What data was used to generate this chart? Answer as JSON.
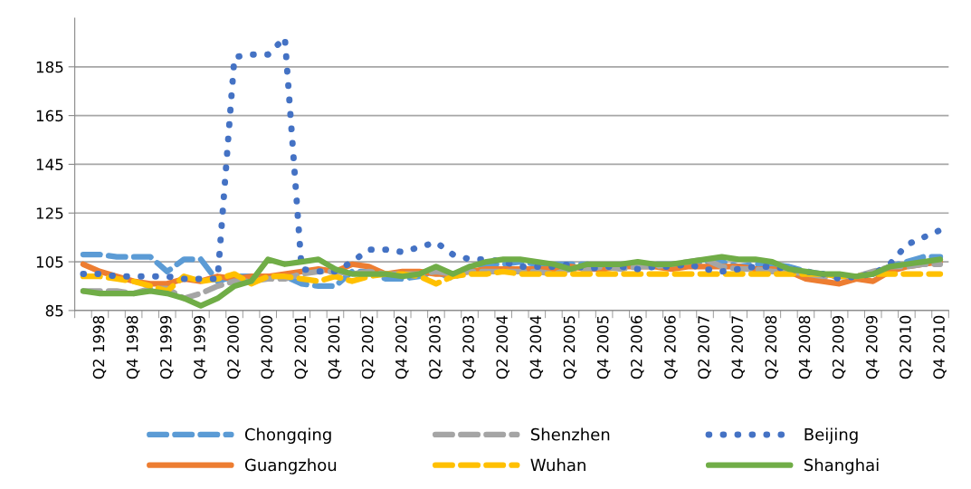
{
  "chart_data": {
    "type": "line",
    "categories": [
      null,
      "Q2 1998",
      null,
      "Q4 1998",
      null,
      "Q2 1999",
      null,
      "Q4 1999",
      null,
      "Q2 2000",
      null,
      "Q4 2000",
      null,
      "Q2 2001",
      null,
      "Q4 2001",
      null,
      "Q2 2002",
      null,
      "Q4 2002",
      null,
      "Q2 2003",
      null,
      "Q4 2003",
      null,
      "Q2 2004",
      null,
      "Q4 2004",
      null,
      "Q2 2005",
      null,
      "Q4 2005",
      null,
      "Q2 2006",
      null,
      "Q4 2006",
      null,
      "Q2 2007",
      null,
      "Q4 2007",
      null,
      "Q2 2008",
      null,
      "Q4 2008",
      null,
      "Q2 2009",
      null,
      "Q4 2009",
      null,
      "Q2 2010",
      null,
      "Q4 2010"
    ],
    "series": [
      {
        "name": "Chongqing",
        "color": "#5b9bd5",
        "line_style": "dashed",
        "values": [
          108,
          108,
          107,
          107,
          107,
          101,
          106,
          106,
          97,
          99,
          99,
          99,
          99,
          96,
          95,
          95,
          101,
          101,
          98,
          98,
          99,
          101,
          98,
          103,
          104,
          104,
          105,
          104,
          104,
          104,
          104,
          103,
          103,
          104,
          104,
          104,
          104,
          105,
          105,
          103,
          104,
          104,
          103,
          101,
          100,
          99,
          99,
          100,
          103,
          105,
          107,
          107
        ]
      },
      {
        "name": "Guangzhou",
        "color": "#ed7d31",
        "line_style": "solid",
        "values": [
          104,
          101,
          99,
          97,
          96,
          96,
          98,
          97,
          99,
          98,
          99,
          99,
          100,
          101,
          102,
          101,
          104,
          103,
          100,
          101,
          101,
          100,
          100,
          101,
          102,
          102,
          102,
          102,
          102,
          103,
          102,
          102,
          103,
          103,
          103,
          102,
          103,
          103,
          103,
          103,
          102,
          102,
          101,
          98,
          97,
          96,
          98,
          97,
          101,
          103,
          104,
          105
        ]
      },
      {
        "name": "Shenzhen",
        "color": "#a5a5a5",
        "line_style": "dashed",
        "values": [
          93,
          93,
          93,
          92,
          94,
          94,
          90,
          92,
          95,
          97,
          97,
          98,
          98,
          100,
          101,
          101,
          100,
          101,
          100,
          100,
          100,
          101,
          100,
          101,
          101,
          101,
          101,
          101,
          100,
          102,
          102,
          103,
          102,
          103,
          103,
          104,
          105,
          106,
          103,
          102,
          102,
          101,
          101,
          100,
          99,
          99,
          99,
          101,
          103,
          103,
          104,
          104
        ]
      },
      {
        "name": "Wuhan",
        "color": "#ffc000",
        "line_style": "dashed",
        "values": [
          99,
          99,
          98,
          97,
          95,
          93,
          99,
          97,
          98,
          100,
          96,
          99,
          99,
          98,
          97,
          99,
          97,
          99,
          100,
          100,
          99,
          96,
          99,
          100,
          100,
          101,
          100,
          100,
          100,
          100,
          100,
          100,
          100,
          100,
          100,
          100,
          100,
          100,
          100,
          100,
          100,
          100,
          100,
          100,
          100,
          99,
          99,
          100,
          100,
          100,
          100,
          100
        ]
      },
      {
        "name": "Beijing",
        "color": "#4472c4",
        "line_style": "dotted",
        "values": [
          100,
          100,
          99,
          99,
          99,
          99,
          98,
          98,
          98,
          189,
          190,
          190,
          197,
          102,
          101,
          101,
          105,
          110,
          110,
          109,
          111,
          113,
          108,
          106,
          106,
          105,
          103,
          103,
          103,
          104,
          102,
          103,
          103,
          102,
          103,
          103,
          104,
          102,
          101,
          102,
          103,
          103,
          102,
          101,
          100,
          98,
          99,
          100,
          104,
          112,
          115,
          118
        ]
      },
      {
        "name": "Shanghai",
        "color": "#70ad47",
        "line_style": "solid",
        "values": [
          93,
          92,
          92,
          92,
          93,
          92,
          90,
          87,
          90,
          95,
          97,
          106,
          104,
          105,
          106,
          102,
          100,
          100,
          100,
          99,
          100,
          103,
          100,
          103,
          105,
          106,
          106,
          105,
          104,
          102,
          104,
          104,
          104,
          105,
          104,
          104,
          105,
          106,
          107,
          106,
          106,
          105,
          102,
          101,
          100,
          100,
          99,
          100,
          103,
          104,
          105,
          106
        ]
      }
    ],
    "ylim": [
      85,
      205
    ],
    "yticks": [
      85,
      105,
      125,
      145,
      165,
      185
    ],
    "grid": "y",
    "legend": "bottom"
  }
}
